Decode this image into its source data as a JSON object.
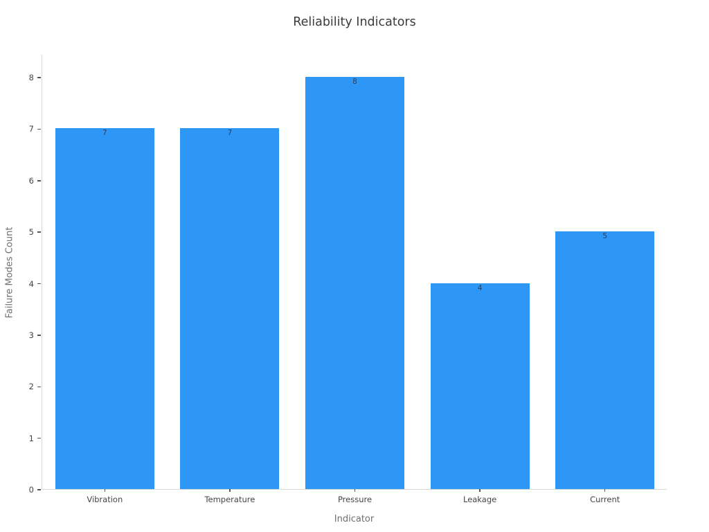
{
  "chart_data": {
    "type": "bar",
    "title": "Reliability Indicators",
    "xlabel": "Indicator",
    "ylabel": "Failure Modes Count",
    "categories": [
      "Vibration",
      "Temperature",
      "Pressure",
      "Leakage",
      "Current"
    ],
    "values": [
      7,
      7,
      8,
      4,
      5
    ],
    "yticks": [
      0,
      1,
      2,
      3,
      4,
      5,
      6,
      7,
      8
    ],
    "ylim": [
      0,
      8
    ],
    "grid": false,
    "legend": "none",
    "colors": {
      "bar": "#2E96F5",
      "bar_label": "#2a3f5f",
      "tick_label": "#444444",
      "axis_title": "#6f6f6f",
      "title": "#3b3b3b",
      "spine": "#d9d9d9",
      "background": "#ffffff"
    }
  }
}
